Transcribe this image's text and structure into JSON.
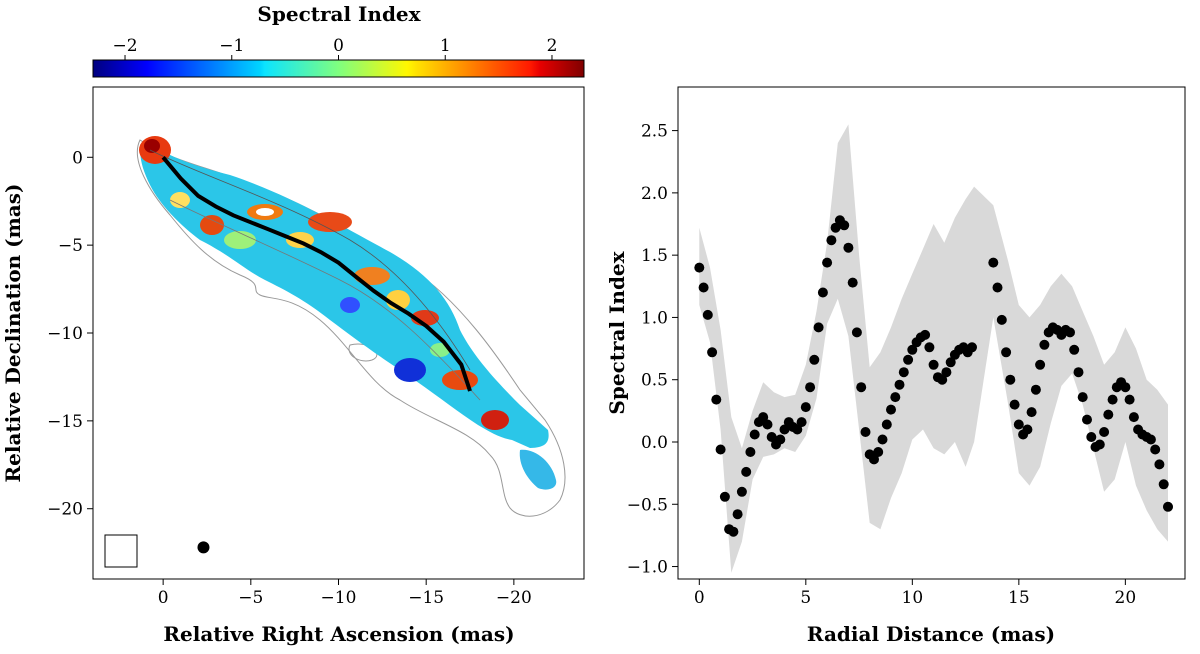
{
  "chart_data": [
    {
      "type": "heatmap",
      "colorbar": {
        "title": "Spectral Index",
        "ticks": [
          -2,
          -1,
          0,
          1,
          2
        ],
        "range": [
          -2.3,
          2.3
        ],
        "colormap": "jet",
        "placement": "top"
      },
      "xlabel": "Relative Right Ascension (mas)",
      "ylabel": "Relative Declination (mas)",
      "xlim": [
        4.0,
        -24.0
      ],
      "ylim": [
        -24.0,
        4.0
      ],
      "xticks": [
        0,
        -5,
        -10,
        -15,
        -20
      ],
      "yticks": [
        0,
        -5,
        -10,
        -15,
        -20
      ],
      "ridge_line": {
        "x": [
          0,
          -1,
          -2,
          -3,
          -4,
          -5,
          -6,
          -7,
          -8,
          -9,
          -10,
          -11,
          -12,
          -13,
          -14,
          -15,
          -16,
          -17,
          -17.5
        ],
        "y": [
          0,
          -1.2,
          -2.2,
          -2.8,
          -3.3,
          -3.7,
          -4.1,
          -4.5,
          -4.9,
          -5.4,
          -6.0,
          -6.8,
          -7.6,
          -8.3,
          -8.9,
          -9.6,
          -10.5,
          -11.8,
          -13.3
        ]
      },
      "beam": {
        "x": -2.3,
        "y": -22.2
      },
      "grid": false
    },
    {
      "type": "scatter",
      "xlabel": "Radial Distance (mas)",
      "ylabel": "Spectral Index",
      "xlim": [
        -1.0,
        22.8
      ],
      "ylim": [
        -1.1,
        2.85
      ],
      "xticks": [
        0,
        5,
        10,
        15,
        20
      ],
      "yticks": [
        -1.0,
        -0.5,
        0.0,
        0.5,
        1.0,
        1.5,
        2.0,
        2.5
      ],
      "grid": false,
      "series": [
        {
          "points": {
            "x": [
              0.0,
              0.2,
              0.4,
              0.6,
              0.8,
              1.0,
              1.2,
              1.4,
              1.6,
              1.8,
              2.0,
              2.2,
              2.4,
              2.6,
              2.8,
              3.0,
              3.2,
              3.4,
              3.6,
              3.8,
              4.0,
              4.2,
              4.4,
              4.6,
              4.8,
              5.0,
              5.2,
              5.4,
              5.6,
              5.8,
              6.0,
              6.2,
              6.4,
              6.6,
              6.8,
              7.0,
              7.2,
              7.4,
              7.6,
              7.8,
              8.0,
              8.2,
              8.4,
              8.6,
              8.8,
              9.0,
              9.2,
              9.4,
              9.6,
              9.8,
              10.0,
              10.2,
              10.4,
              10.6,
              10.8,
              11.0,
              11.2,
              11.4,
              11.6,
              11.8,
              12.0,
              12.2,
              12.4,
              12.6,
              12.8,
              13.8,
              14.0,
              14.2,
              14.4,
              14.6,
              14.8,
              15.0,
              15.2,
              15.4,
              15.6,
              15.8,
              16.0,
              16.2,
              16.4,
              16.6,
              16.8,
              17.0,
              17.2,
              17.4,
              17.6,
              17.8,
              18.0,
              18.2,
              18.4,
              18.6,
              18.8,
              19.0,
              19.2,
              19.4,
              19.6,
              19.8,
              20.0,
              20.2,
              20.4,
              20.6,
              20.8,
              21.0,
              21.2,
              21.4,
              21.6,
              21.8,
              22.0
            ],
            "y": [
              1.4,
              1.24,
              1.02,
              0.72,
              0.34,
              -0.06,
              -0.44,
              -0.7,
              -0.72,
              -0.58,
              -0.4,
              -0.24,
              -0.08,
              0.06,
              0.16,
              0.2,
              0.14,
              0.04,
              -0.02,
              0.02,
              0.1,
              0.16,
              0.12,
              0.1,
              0.16,
              0.28,
              0.44,
              0.66,
              0.92,
              1.2,
              1.44,
              1.62,
              1.72,
              1.78,
              1.74,
              1.56,
              1.28,
              0.88,
              0.44,
              0.08,
              -0.1,
              -0.14,
              -0.08,
              0.02,
              0.14,
              0.26,
              0.36,
              0.46,
              0.56,
              0.66,
              0.74,
              0.8,
              0.84,
              0.86,
              0.76,
              0.62,
              0.52,
              0.5,
              0.56,
              0.64,
              0.7,
              0.74,
              0.76,
              0.72,
              0.76,
              1.44,
              1.24,
              0.98,
              0.72,
              0.5,
              0.3,
              0.14,
              0.06,
              0.1,
              0.24,
              0.42,
              0.62,
              0.78,
              0.88,
              0.92,
              0.9,
              0.86,
              0.9,
              0.88,
              0.74,
              0.56,
              0.36,
              0.18,
              0.04,
              -0.04,
              -0.02,
              0.08,
              0.22,
              0.34,
              0.44,
              0.48,
              0.44,
              0.34,
              0.2,
              0.1,
              0.06,
              0.04,
              0.02,
              -0.06,
              -0.18,
              -0.34,
              -0.52
            ]
          },
          "uncertainty_band": {
            "x": [
              0.0,
              0.5,
              1.0,
              1.5,
              2.0,
              2.5,
              3.0,
              3.5,
              4.0,
              4.5,
              5.0,
              5.5,
              6.0,
              6.5,
              7.0,
              7.5,
              8.0,
              8.5,
              9.0,
              9.5,
              10.0,
              10.5,
              11.0,
              11.5,
              12.0,
              12.5,
              12.9,
              13.8,
              14.5,
              15.0,
              15.5,
              16.0,
              16.5,
              17.0,
              17.5,
              18.0,
              18.5,
              19.0,
              19.5,
              20.0,
              20.5,
              21.0,
              21.5,
              22.0
            ],
            "upper": [
              1.72,
              1.4,
              0.9,
              0.2,
              -0.05,
              0.25,
              0.48,
              0.4,
              0.36,
              0.38,
              0.62,
              1.05,
              1.6,
              2.4,
              2.55,
              1.5,
              0.6,
              0.72,
              0.92,
              1.15,
              1.35,
              1.55,
              1.75,
              1.6,
              1.8,
              1.95,
              2.05,
              1.9,
              1.45,
              1.1,
              1.0,
              1.1,
              1.25,
              1.35,
              1.25,
              1.05,
              0.85,
              0.62,
              0.72,
              0.92,
              0.75,
              0.5,
              0.42,
              0.3
            ],
            "lower": [
              1.1,
              0.8,
              0.1,
              -1.05,
              -0.8,
              -0.3,
              -0.12,
              -0.1,
              -0.05,
              -0.08,
              0.05,
              0.35,
              0.95,
              1.15,
              0.85,
              0.1,
              -0.65,
              -0.7,
              -0.45,
              -0.25,
              0.02,
              0.1,
              -0.05,
              -0.1,
              0.0,
              -0.2,
              0.0,
              1.0,
              0.3,
              -0.25,
              -0.35,
              -0.2,
              0.15,
              0.45,
              0.55,
              0.3,
              -0.05,
              -0.4,
              -0.3,
              0.0,
              -0.35,
              -0.55,
              -0.7,
              -0.8
            ]
          }
        }
      ]
    }
  ]
}
